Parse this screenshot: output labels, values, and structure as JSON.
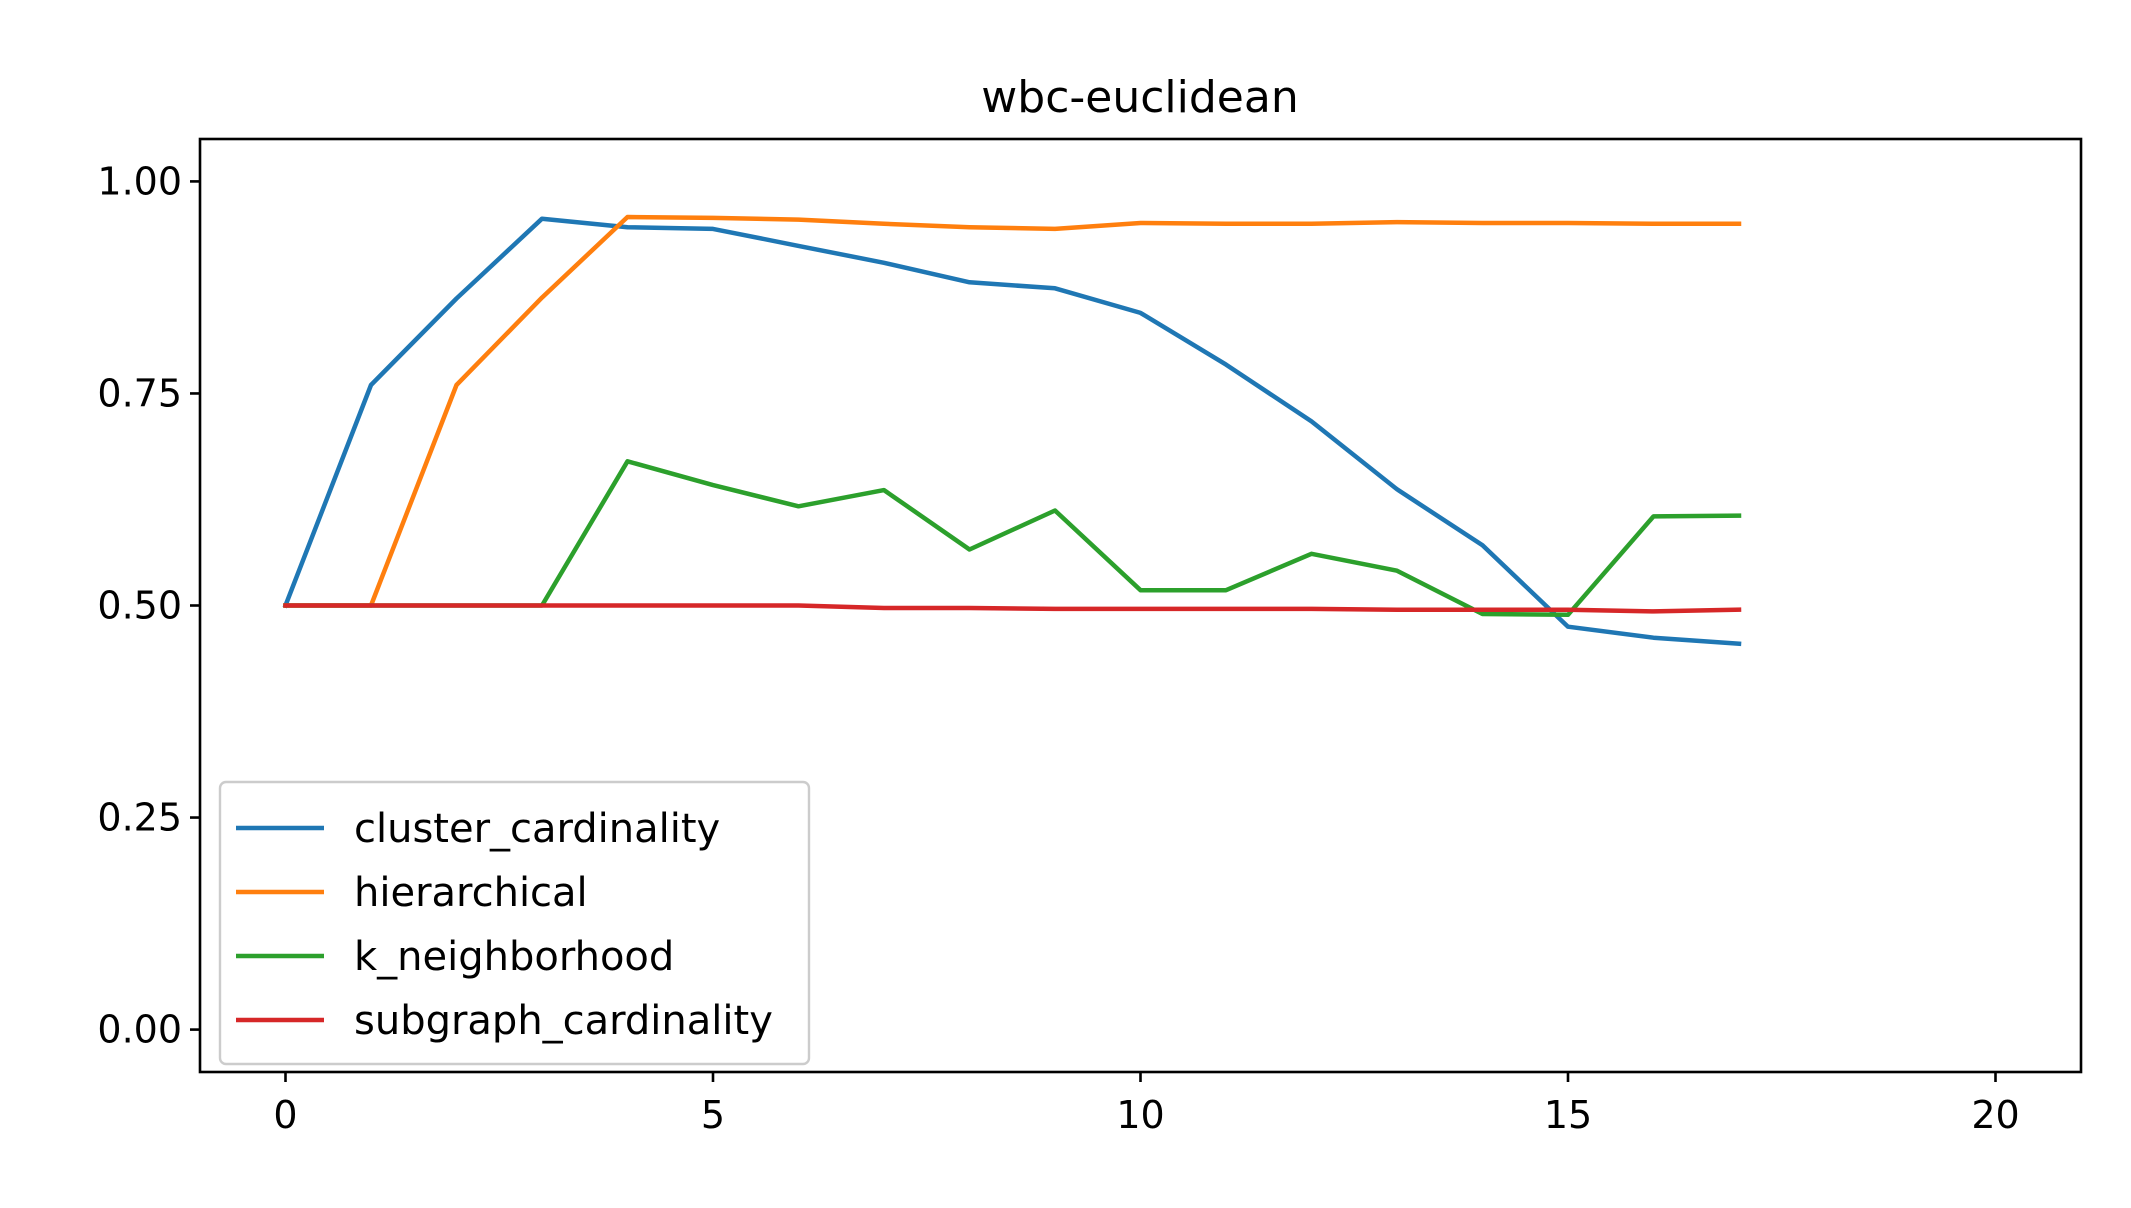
{
  "chart_data": {
    "type": "line",
    "title": "wbc-euclidean",
    "xlabel": "",
    "ylabel": "",
    "xlim": [
      -1,
      21
    ],
    "ylim": [
      -0.05,
      1.05
    ],
    "x_ticks": [
      0,
      5,
      10,
      15,
      20
    ],
    "x_tick_labels": [
      "0",
      "5",
      "10",
      "15",
      "20"
    ],
    "y_ticks": [
      0.0,
      0.25,
      0.5,
      0.75,
      1.0
    ],
    "y_tick_labels": [
      "0.00",
      "0.25",
      "0.50",
      "0.75",
      "1.00"
    ],
    "grid": false,
    "legend_position": "lower-left",
    "x": [
      0,
      1,
      2,
      3,
      4,
      5,
      6,
      7,
      8,
      9,
      10,
      11,
      12,
      13,
      14,
      15,
      16,
      17
    ],
    "series": [
      {
        "name": "cluster_cardinality",
        "color": "#1f77b4",
        "values": [
          0.5,
          0.76,
          0.862,
          0.956,
          0.946,
          0.944,
          0.924,
          0.904,
          0.881,
          0.874,
          0.845,
          0.784,
          0.717,
          0.637,
          0.571,
          0.475,
          0.462,
          0.455
        ]
      },
      {
        "name": "hierarchical",
        "color": "#ff7f0e",
        "values": [
          0.5,
          0.5,
          0.76,
          0.863,
          0.958,
          0.957,
          0.955,
          0.95,
          0.946,
          0.944,
          0.951,
          0.95,
          0.95,
          0.952,
          0.951,
          0.951,
          0.95,
          0.95
        ]
      },
      {
        "name": "k_neighborhood",
        "color": "#2ca02c",
        "values": [
          0.5,
          0.5,
          0.5,
          0.5,
          0.67,
          0.642,
          0.617,
          0.636,
          0.566,
          0.612,
          0.518,
          0.518,
          0.561,
          0.541,
          0.49,
          0.489,
          0.605,
          0.606
        ]
      },
      {
        "name": "subgraph_cardinality",
        "color": "#d62728",
        "values": [
          0.5,
          0.5,
          0.5,
          0.5,
          0.5,
          0.5,
          0.5,
          0.497,
          0.497,
          0.496,
          0.496,
          0.496,
          0.496,
          0.495,
          0.495,
          0.495,
          0.493,
          0.495
        ]
      }
    ]
  }
}
